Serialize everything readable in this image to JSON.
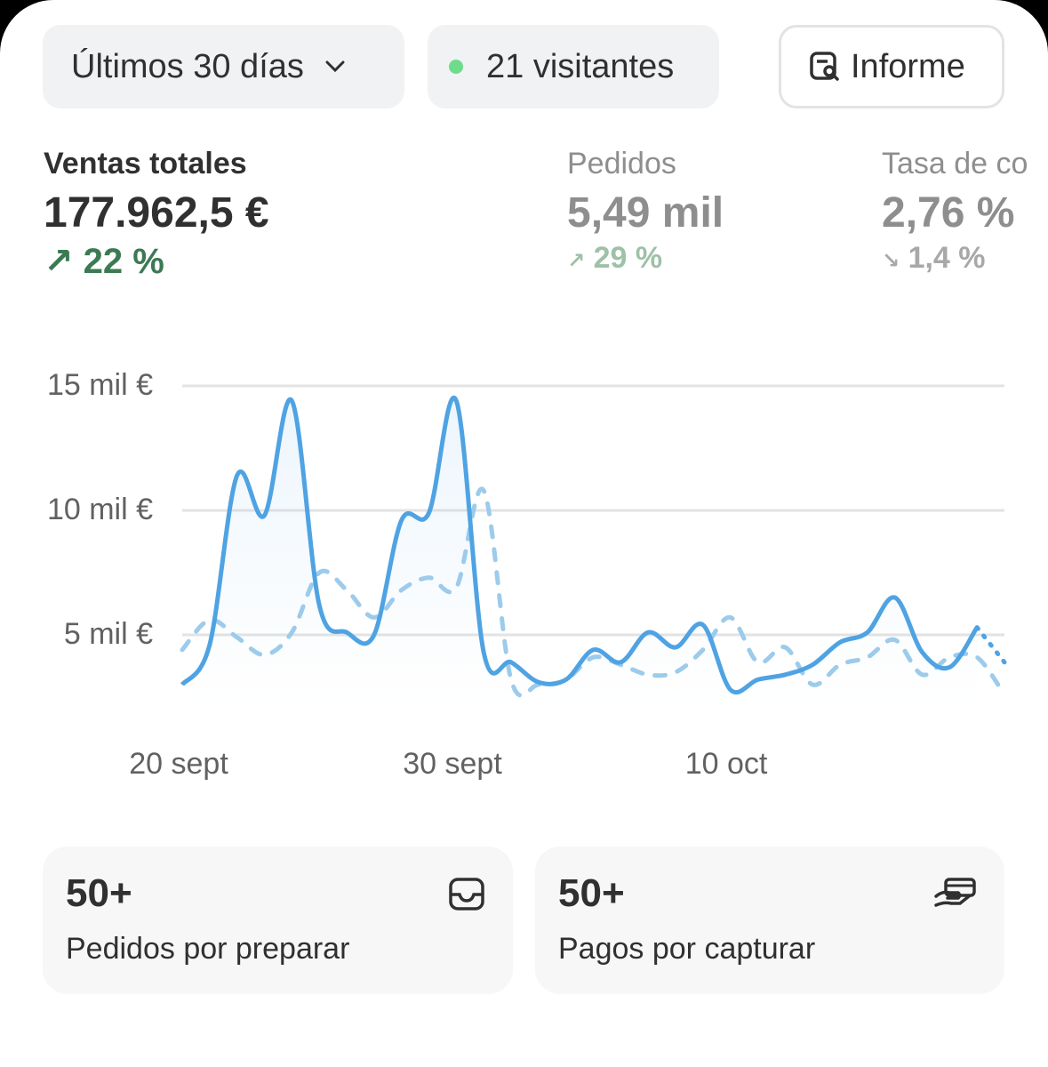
{
  "toolbar": {
    "range_label": "Últimos 30 días",
    "visitors_label": "21 visitantes",
    "report_label": "Informe",
    "live_color": "#6fdc8c"
  },
  "metrics": [
    {
      "label": "Ventas totales",
      "value": "177.962,5 €",
      "change": "22 %",
      "direction": "up",
      "color": "#3c7a53"
    },
    {
      "label": "Pedidos",
      "value": "5,49 mil",
      "change": "29 %",
      "direction": "up",
      "color": "#9aa59e"
    },
    {
      "label": "Tasa de co",
      "value": "2,76 %",
      "change": "1,4 %",
      "direction": "down",
      "color": "#9e9e9e"
    }
  ],
  "chart_data": {
    "type": "line",
    "y_ticks": [
      "15 mil €",
      "10 mil €",
      "5 mil €"
    ],
    "y_tick_values": [
      15,
      10,
      5
    ],
    "ylim": [
      0,
      15
    ],
    "x_ticks": [
      "20 sept",
      "30 sept",
      "10 oct"
    ],
    "x_tick_index": [
      0,
      10,
      20
    ],
    "grid": true,
    "series": [
      {
        "style": "solid",
        "color": "#4fa3e3",
        "values": [
          3.0,
          4.6,
          11.4,
          9.8,
          14.4,
          6.2,
          5.1,
          5.0,
          9.6,
          9.9,
          14.4,
          4.3,
          3.9,
          3.1,
          3.2,
          4.4,
          3.9,
          5.1,
          4.5,
          5.4,
          2.8,
          3.2,
          3.4,
          3.8,
          4.7,
          5.1,
          6.5,
          4.3,
          3.7,
          5.3,
          3.9
        ]
      },
      {
        "style": "dashed",
        "color": "#9ccbeb",
        "values": [
          4.4,
          5.6,
          4.9,
          4.2,
          5.1,
          7.5,
          6.8,
          5.7,
          6.8,
          7.3,
          6.9,
          10.8,
          3.2,
          3.0,
          3.2,
          4.1,
          3.8,
          3.4,
          3.5,
          4.4,
          5.7,
          3.9,
          4.5,
          3.0,
          3.8,
          4.1,
          4.8,
          3.4,
          4.1,
          4.1,
          2.6
        ]
      }
    ]
  },
  "tiles": [
    {
      "count": "50+",
      "label": "Pedidos por preparar",
      "icon": "inbox-icon"
    },
    {
      "count": "50+",
      "label": "Pagos por capturar",
      "icon": "hand-card-icon"
    }
  ]
}
